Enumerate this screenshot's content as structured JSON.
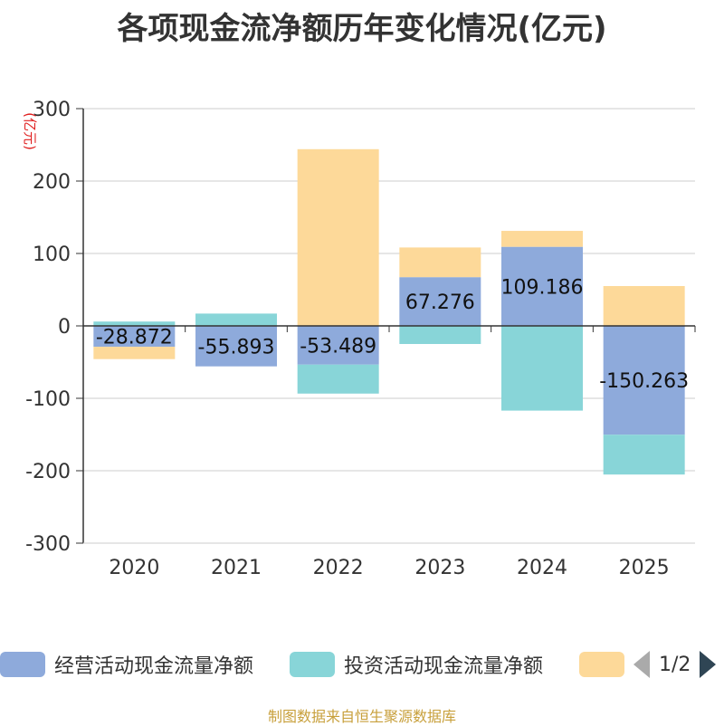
{
  "chart_data": {
    "type": "bar",
    "stacked": true,
    "title": "各项现金流净额历年变化情况(亿元)",
    "ylabel": "(亿元)",
    "categories": [
      "2020",
      "2021",
      "2022",
      "2023",
      "2024",
      "2025"
    ],
    "ylim": [
      -300,
      300
    ],
    "yticks": [
      300,
      200,
      100,
      0,
      -100,
      -200,
      -300
    ],
    "series": [
      {
        "name": "经营活动现金流量净额",
        "color": "#8eaadb",
        "values": [
          -28.872,
          -55.893,
          -53.489,
          67.276,
          109.186,
          -150.263
        ],
        "show_labels": true
      },
      {
        "name": "投资活动现金流量净额",
        "color": "#88d5d8",
        "values": [
          6,
          17,
          -40,
          -25,
          -117,
          -55
        ],
        "show_labels": false
      },
      {
        "name": "",
        "color": "#fdd999",
        "values": [
          -17,
          0,
          244,
          41,
          22,
          55
        ],
        "show_labels": false
      }
    ],
    "data_labels": [
      "-28.872",
      "-55.893",
      "-53.489",
      "67.276",
      "109.186",
      "-150.263"
    ]
  },
  "legend": {
    "items": [
      {
        "label": "经营活动现金流量净额",
        "color": "#8eaadb"
      },
      {
        "label": "投资活动现金流量净额",
        "color": "#88d5d8"
      },
      {
        "label": "",
        "color": "#fdd999"
      }
    ],
    "page_text": "1/2"
  },
  "source": "制图数据来自恒生聚源数据库"
}
